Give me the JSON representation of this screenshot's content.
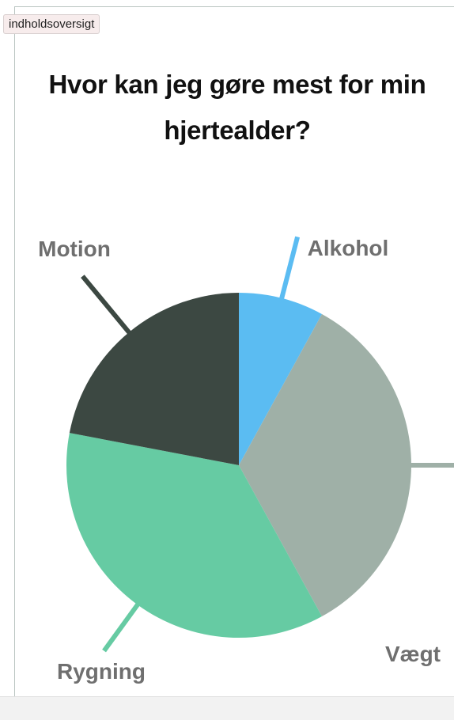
{
  "toc_button": {
    "label": "indholdsoversigt"
  },
  "chart_data": {
    "type": "pie",
    "title": "Hvor kan jeg gøre mest for min hjertealder?",
    "slices": [
      {
        "label": "Alkohol",
        "value": 8,
        "color": "#5bbcf2"
      },
      {
        "label": "Vægt",
        "value": 34,
        "color": "#9fb0a7"
      },
      {
        "label": "Rygning",
        "value": 36,
        "color": "#66cba3"
      },
      {
        "label": "Motion",
        "value": 22,
        "color": "#3c4842"
      }
    ]
  }
}
